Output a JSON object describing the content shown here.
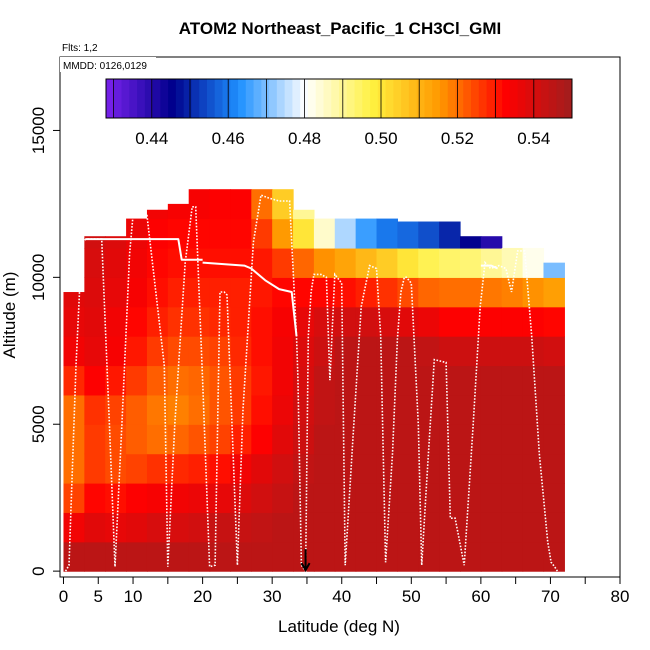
{
  "chart_data": {
    "type": "heatmap",
    "title": "ATOM2 Northeast_Pacific_1 CH3Cl_GMI",
    "annotations": [
      "Flts: 1,2",
      "MMDD: 0126,0129"
    ],
    "xlabel": "Latitude (deg N)",
    "ylabel": "Altitude (m)",
    "xlim": [
      -0.5,
      80
    ],
    "ylim": [
      -200,
      17500
    ],
    "x_major_ticks": [
      0,
      5,
      10,
      20,
      30,
      40,
      50,
      60,
      70,
      80
    ],
    "x_minor_ticks": [
      15,
      25,
      35,
      45,
      55,
      65,
      75
    ],
    "y_ticks": [
      0,
      5000,
      10000,
      15000
    ],
    "colorbar": {
      "range": [
        0.428,
        0.55
      ],
      "ticks": [
        "0.44",
        "0.46",
        "0.48",
        "0.50",
        "0.52",
        "0.54"
      ],
      "tick_values": [
        0.44,
        0.46,
        0.48,
        0.5,
        0.52,
        0.54
      ],
      "colors": [
        "#7B22EE",
        "#00008C",
        "#1E90FF",
        "#FFFFFF",
        "#FFF140",
        "#FF9900",
        "#FF0000",
        "#A01E1E"
      ]
    },
    "curtain_value_grid": {
      "lat_bins": [
        0,
        3,
        6,
        9,
        12,
        15,
        18,
        21,
        24,
        27,
        30,
        33,
        36,
        39,
        42,
        45,
        48,
        51,
        54,
        57,
        60,
        63,
        66,
        69,
        72
      ],
      "alt_bins_m": [
        0,
        1000,
        2000,
        3000,
        4000,
        5000,
        6000,
        7000,
        8000,
        9000,
        10000,
        11000,
        12000,
        13000
      ],
      "tops_m": [
        9500,
        11400,
        11400,
        12000,
        12300,
        12500,
        13000,
        13000,
        13000,
        13000,
        13000,
        12300,
        12000,
        12000,
        12000,
        12000,
        11900,
        11900,
        11900,
        11400,
        11400,
        11000,
        11000,
        10500
      ],
      "values": [
        [
          0.545,
          0.545,
          0.545,
          0.545,
          0.545,
          0.545,
          0.545,
          0.545,
          0.545,
          0.545,
          0.545,
          0.545,
          0.545,
          0.545,
          0.545,
          0.545,
          0.545,
          0.545,
          0.545,
          0.545,
          0.545,
          0.545,
          0.545,
          0.545
        ],
        [
          0.535,
          0.538,
          0.537,
          0.538,
          0.54,
          0.54,
          0.541,
          0.543,
          0.543,
          0.544,
          0.545,
          0.545,
          0.545,
          0.545,
          0.545,
          0.545,
          0.545,
          0.545,
          0.545,
          0.545,
          0.545,
          0.545,
          0.545,
          0.545
        ],
        [
          0.525,
          0.532,
          0.531,
          0.533,
          0.534,
          0.535,
          0.536,
          0.537,
          0.539,
          0.541,
          0.543,
          0.545,
          0.545,
          0.545,
          0.545,
          0.545,
          0.545,
          0.545,
          0.545,
          0.545,
          0.545,
          0.545,
          0.545,
          0.545
        ],
        [
          0.52,
          0.526,
          0.524,
          0.525,
          0.527,
          0.528,
          0.529,
          0.531,
          0.535,
          0.538,
          0.541,
          0.544,
          0.545,
          0.545,
          0.545,
          0.545,
          0.545,
          0.545,
          0.545,
          0.545,
          0.545,
          0.545,
          0.545,
          0.545
        ],
        [
          0.52,
          0.526,
          0.524,
          0.522,
          0.52,
          0.521,
          0.523,
          0.525,
          0.529,
          0.533,
          0.538,
          0.542,
          0.545,
          0.545,
          0.545,
          0.545,
          0.545,
          0.545,
          0.545,
          0.545,
          0.545,
          0.545,
          0.545,
          0.545
        ],
        [
          0.52,
          0.527,
          0.525,
          0.522,
          0.519,
          0.518,
          0.52,
          0.523,
          0.526,
          0.531,
          0.536,
          0.541,
          0.544,
          0.545,
          0.545,
          0.545,
          0.545,
          0.545,
          0.545,
          0.545,
          0.545,
          0.545,
          0.545,
          0.545
        ],
        [
          0.528,
          0.533,
          0.53,
          0.526,
          0.522,
          0.52,
          0.521,
          0.523,
          0.526,
          0.53,
          0.535,
          0.54,
          0.544,
          0.545,
          0.545,
          0.545,
          0.545,
          0.545,
          0.545,
          0.545,
          0.545,
          0.545,
          0.545,
          0.545
        ],
        [
          0.535,
          0.537,
          0.534,
          0.53,
          0.526,
          0.524,
          0.524,
          0.525,
          0.528,
          0.531,
          0.535,
          0.539,
          0.542,
          0.545,
          0.545,
          0.545,
          0.545,
          0.544,
          0.542,
          0.542,
          0.542,
          0.542,
          0.542,
          0.541
        ],
        [
          0.537,
          0.538,
          0.535,
          0.532,
          0.529,
          0.527,
          0.527,
          0.528,
          0.529,
          0.531,
          0.534,
          0.537,
          0.54,
          0.541,
          0.541,
          0.54,
          0.538,
          0.536,
          0.533,
          0.533,
          0.533,
          0.533,
          0.533,
          0.532
        ],
        [
          0.538,
          0.539,
          0.537,
          0.534,
          0.531,
          0.529,
          0.529,
          0.529,
          0.529,
          0.53,
          0.532,
          0.532,
          0.532,
          0.531,
          0.529,
          0.527,
          0.524,
          0.521,
          0.52,
          0.52,
          0.519,
          0.518,
          0.516,
          0.514
        ],
        [
          0.539,
          0.54,
          0.538,
          0.535,
          0.532,
          0.531,
          0.531,
          0.531,
          0.531,
          0.53,
          0.526,
          0.521,
          0.516,
          0.513,
          0.509,
          0.505,
          0.5,
          0.496,
          0.494,
          0.493,
          0.49,
          0.487,
          0.482,
          0.47
        ],
        [
          0.54,
          0.541,
          0.539,
          0.536,
          0.533,
          0.532,
          0.532,
          0.532,
          0.532,
          0.526,
          0.515,
          0.5,
          0.485,
          0.474,
          0.465,
          0.46,
          0.458,
          0.455,
          0.45,
          0.445,
          0.44,
          0.437,
          0.434,
          0.43
        ],
        [
          0.54,
          0.541,
          0.539,
          0.537,
          0.535,
          0.534,
          0.534,
          0.533,
          0.533,
          0.52,
          0.505,
          0.49,
          0.48,
          0.47,
          0.465,
          0.462,
          0.46,
          0.457,
          0.454,
          0.45,
          0.446,
          0.442,
          0.438,
          0.434
        ],
        [
          0.54,
          0.54,
          0.539,
          0.537,
          0.535,
          0.535,
          0.534,
          0.533,
          0.533,
          0.525,
          0.51,
          0.5,
          0.49,
          0.48,
          0.47,
          0.465,
          0.46,
          0.455,
          0.45,
          0.445,
          0.44,
          0.435,
          0.43,
          0.43
        ]
      ]
    },
    "flight_track": {
      "x": [
        0.3,
        0.8,
        1.8,
        2.5,
        2.8,
        3.2,
        5.5,
        6.6,
        7.4,
        8.4,
        9.5,
        10,
        12,
        14.5,
        15,
        16,
        17.5,
        18.5,
        19,
        20,
        21,
        21.8,
        22.5,
        23.1,
        23.5,
        25,
        25.8,
        27.3,
        28.4,
        29.5,
        31,
        32.5,
        33.5,
        33.7,
        34.2,
        34.8,
        35.2,
        35.6,
        36,
        37,
        37.8,
        38.3,
        39,
        40,
        40.5,
        41.6,
        42.8,
        44,
        45,
        45.6,
        46.3,
        47.3,
        48,
        48.5,
        49,
        49.3,
        50,
        51,
        51.5,
        52.2,
        53.3,
        55,
        55.6,
        56.3,
        57.6,
        58.9,
        59.9,
        60.6,
        61.4,
        62.6,
        63.6,
        64.4,
        65.3,
        65.8,
        66.3,
        67.3,
        68.4,
        69.6,
        70.1,
        70.6,
        71
      ],
      "y": [
        0,
        200,
        7000,
        10500,
        11200,
        11300,
        11300,
        5000,
        150,
        5000,
        10800,
        12100,
        12100,
        7000,
        150,
        5000,
        10500,
        12400,
        12400,
        6500,
        150,
        200,
        9500,
        9500,
        9400,
        200,
        5500,
        11200,
        12800,
        12700,
        12600,
        12600,
        8000,
        6600,
        200,
        0,
        8000,
        9500,
        10100,
        10100,
        10000,
        6500,
        10100,
        9800,
        200,
        4500,
        9000,
        10400,
        10300,
        8000,
        300,
        4000,
        7900,
        9500,
        10000,
        10000,
        9800,
        5000,
        200,
        3000,
        7200,
        7100,
        1800,
        1800,
        200,
        5000,
        9000,
        10500,
        10300,
        10400,
        10300,
        9500,
        10900,
        10900,
        10900,
        8000,
        4000,
        1000,
        300,
        150,
        0
      ]
    },
    "leg_lines": {
      "segments": [
        {
          "x": [
            3.2,
            12
          ],
          "y": [
            11300,
            11300
          ]
        },
        {
          "x": [
            12,
            16.5,
            17,
            20
          ],
          "y": [
            11300,
            11300,
            10600,
            10600
          ]
        },
        {
          "x": [
            20,
            26,
            27
          ],
          "y": [
            10500,
            10400,
            10300
          ]
        },
        {
          "x": [
            27,
            29,
            31,
            32.8,
            33.5
          ],
          "y": [
            10300,
            9900,
            9600,
            9500,
            8000
          ]
        },
        {
          "x": [
            60,
            61.5,
            62.4
          ],
          "y": [
            10400,
            10400,
            10300
          ]
        }
      ]
    },
    "marker": {
      "x": 34.8,
      "y": 0,
      "kind": "arrow-down"
    }
  }
}
